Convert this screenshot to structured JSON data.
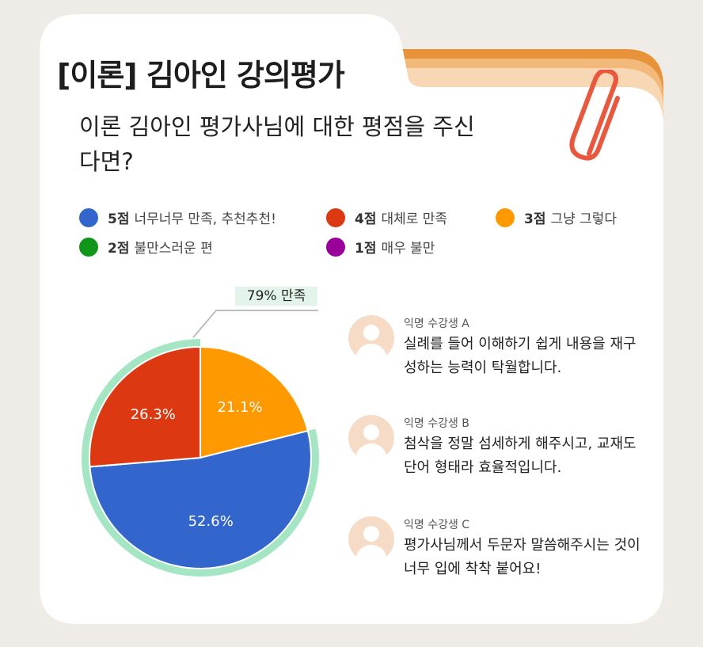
{
  "title": "[이론] 김아인 강의평가",
  "question": "이론 김아인 평가사님에 대한 평점을 주신다면?",
  "legend": [
    {
      "points": "5점",
      "label": "너무너무 만족, 추천추천!",
      "color": "#3366cc"
    },
    {
      "points": "4점",
      "label": "대체로 만족",
      "color": "#dc3912"
    },
    {
      "points": "3점",
      "label": "그냥 그렇다",
      "color": "#ff9900"
    },
    {
      "points": "2점",
      "label": "불만스러운 편",
      "color": "#109618"
    },
    {
      "points": "1점",
      "label": "매우 불만",
      "color": "#990099"
    }
  ],
  "satisfaction_label": "79% 만족",
  "chart_data": {
    "type": "pie",
    "categories": [
      "5점",
      "4점",
      "3점",
      "2점",
      "1점"
    ],
    "values": [
      52.6,
      26.3,
      21.1,
      0,
      0
    ],
    "labels": [
      "52.6%",
      "26.3%",
      "21.1%",
      "",
      ""
    ],
    "colors": [
      "#3366cc",
      "#dc3912",
      "#ff9900",
      "#109618",
      "#990099"
    ],
    "highlight": {
      "text": "79% 만족",
      "value": 78.9,
      "color": "#a4e6c4"
    }
  },
  "reviews": [
    {
      "author": "익명 수강생 A",
      "text": "실례를 들어 이해하기 쉽게 내용을 재구성하는 능력이 탁월합니다."
    },
    {
      "author": "익명 수강생 B",
      "text": "첨삭을 정말 섬세하게 해주시고, 교재도 단어 형태라 효율적입니다."
    },
    {
      "author": "익명 수강생 C",
      "text": "평가사님께서 두문자 말씀해주시는 것이 너무 입에 착착 붙어요!"
    }
  ],
  "colors": {
    "background": "#efebe6",
    "card": "#ffffff",
    "stripe_1": "#e8923a",
    "stripe_2": "#f3b97a",
    "stripe_3": "#f8d8b4",
    "clip": "#e8573e"
  },
  "icons": {
    "clip": "paperclip-icon",
    "avatar": "user-avatar-icon"
  }
}
